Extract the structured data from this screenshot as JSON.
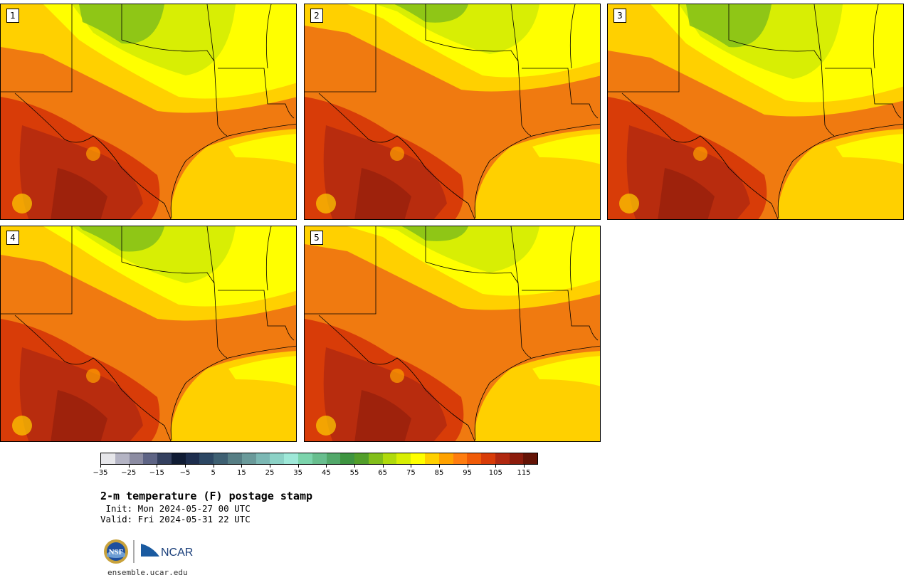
{
  "panels": [
    {
      "label": "1",
      "variant": 1
    },
    {
      "label": "2",
      "variant": 2
    },
    {
      "label": "3",
      "variant": 3
    },
    {
      "label": "4",
      "variant": 4
    },
    {
      "label": "5",
      "variant": 5
    }
  ],
  "colorbar": {
    "colors": [
      "#e6e6ea",
      "#b4b4c4",
      "#8c8ca2",
      "#5e6485",
      "#34405f",
      "#101c34",
      "#1e2e4e",
      "#2c4763",
      "#3e6072",
      "#567e84",
      "#6a9a9a",
      "#7cb8b4",
      "#8cd2c6",
      "#9ee8d8",
      "#7cd4ac",
      "#68be8e",
      "#52a86a",
      "#3e9440",
      "#529e2a",
      "#82be1a",
      "#b0da0c",
      "#d8ee04",
      "#ffff00",
      "#ffd000",
      "#ffa200",
      "#ff7d10",
      "#f05b08",
      "#d83c08",
      "#b02810",
      "#8c1c0c",
      "#641406"
    ],
    "tick_labels": [
      "−35",
      "−25",
      "−15",
      "−5",
      "5",
      "15",
      "25",
      "35",
      "45",
      "55",
      "65",
      "75",
      "85",
      "95",
      "105",
      "115"
    ]
  },
  "title": "2-m temperature (F) postage stamp",
  "init_line": " Init: Mon 2024-05-27 00 UTC",
  "valid_line": "Valid: Fri 2024-05-31 22 UTC",
  "logos": {
    "nsf": "NSF",
    "ncar": "NCAR"
  },
  "website": "ensemble.ucar.edu"
}
